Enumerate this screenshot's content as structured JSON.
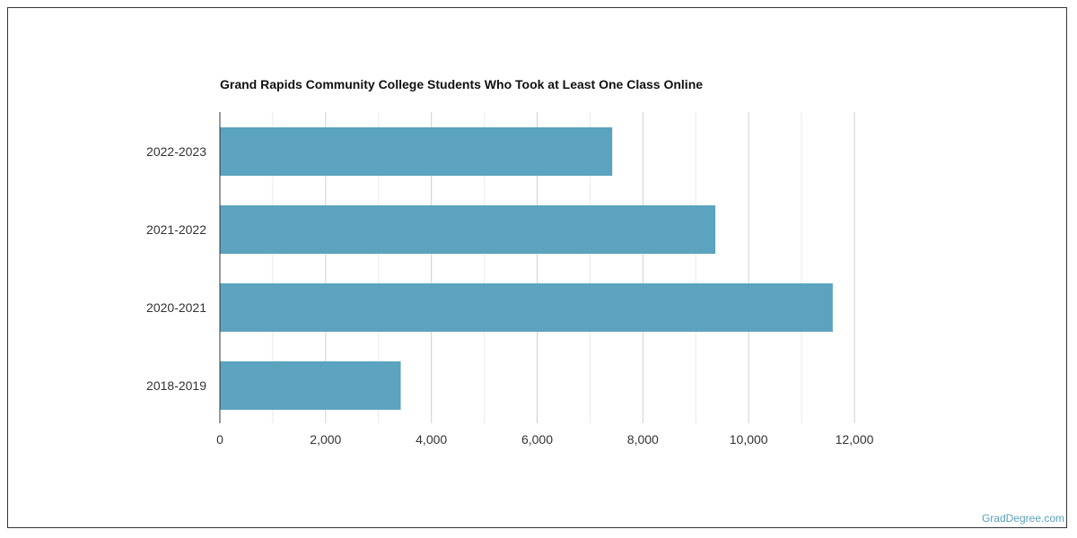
{
  "chart_data": {
    "type": "bar",
    "orientation": "horizontal",
    "title": "Grand Rapids Community College Students Who Took at Least One Class Online",
    "categories": [
      "2022-2023",
      "2021-2022",
      "2020-2021",
      "2018-2019"
    ],
    "values": [
      7420,
      9370,
      11590,
      3420
    ],
    "xlim": [
      0,
      12000
    ],
    "xticks": [
      0,
      2000,
      4000,
      6000,
      8000,
      10000,
      12000
    ],
    "xtick_labels": [
      "0",
      "2,000",
      "4,000",
      "6,000",
      "8,000",
      "10,000",
      "12,000"
    ],
    "grid": true,
    "bar_color": "#5ba3bf"
  },
  "credit": "GradDegree.com"
}
